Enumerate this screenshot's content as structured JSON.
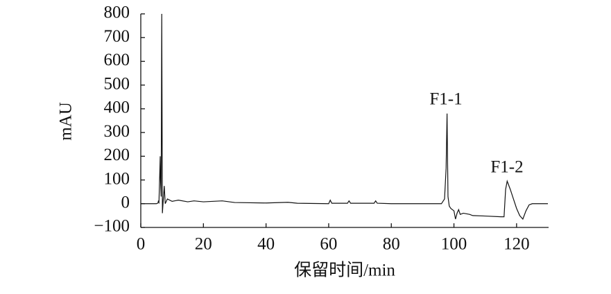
{
  "chart_data": {
    "type": "line",
    "y_label": "mAU",
    "x_label": "保留时间/min",
    "annotations": [
      "F1-1",
      "F1-2"
    ],
    "color": "#111111",
    "xlim": [
      0,
      130
    ],
    "xticks": [
      0,
      20,
      40,
      60,
      80,
      100,
      120
    ],
    "ylim": [
      -100,
      800
    ],
    "yticks": [
      {
        "value": -100,
        "label": "−100"
      },
      0,
      100,
      200,
      300,
      400,
      500,
      600,
      700,
      800
    ],
    "x": [
      0,
      5,
      5.5,
      5.6,
      5.8,
      6,
      6.2,
      6.3,
      6.5,
      6.7,
      6.9,
      7.2,
      7.5,
      7.8,
      8.5,
      10,
      12,
      15,
      17,
      20,
      26,
      30,
      40,
      47,
      50,
      60,
      60.5,
      61,
      66,
      66.5,
      67,
      74.5,
      75,
      75.5,
      80,
      90,
      96,
      97,
      97.5,
      97.8,
      98.1,
      98.5,
      99,
      100,
      100.5,
      101,
      101.5,
      102,
      103,
      105,
      106,
      110,
      115,
      116,
      116.5,
      117,
      118,
      119,
      120,
      121,
      122,
      123,
      124,
      125,
      130
    ],
    "values": [
      0,
      0,
      3,
      10,
      5,
      100,
      200,
      100,
      30,
      800,
      -40,
      20,
      75,
      0,
      20,
      10,
      15,
      8,
      12,
      8,
      12,
      5,
      3,
      6,
      2,
      0,
      15,
      2,
      2,
      12,
      2,
      2,
      12,
      2,
      0,
      0,
      0,
      20,
      150,
      380,
      30,
      -10,
      -20,
      -30,
      -65,
      -40,
      -25,
      -45,
      -40,
      -45,
      -50,
      -52,
      -55,
      -55,
      60,
      95,
      60,
      20,
      -20,
      -50,
      -65,
      -30,
      -5,
      0,
      0
    ]
  }
}
